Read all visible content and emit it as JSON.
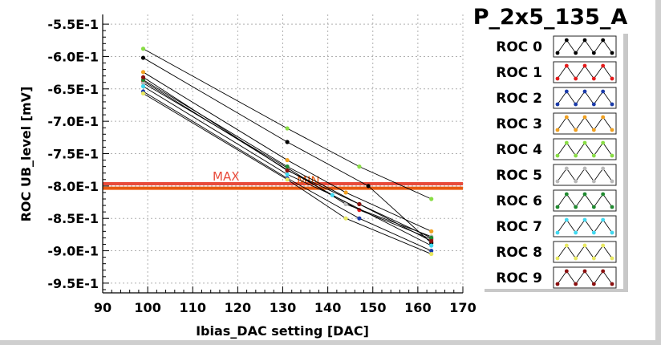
{
  "chart_data": {
    "type": "line",
    "title": "P_2x5_135_A",
    "xlabel": "Ibias_DAC setting [DAC]",
    "ylabel": "ROC UB_level [mV]",
    "xlim": [
      90,
      170
    ],
    "ylim": [
      -0.965,
      -0.535
    ],
    "xticks": [
      90,
      100,
      110,
      120,
      130,
      140,
      150,
      160,
      170
    ],
    "xtick_labels": [
      "90",
      "100",
      "110",
      "120",
      "130",
      "140",
      "150",
      "160",
      "170"
    ],
    "yticks": [
      -0.55,
      -0.6,
      -0.65,
      -0.7,
      -0.75,
      -0.8,
      -0.85,
      -0.9,
      -0.95
    ],
    "ytick_labels": [
      "-5.5E-1",
      "-6.0E-1",
      "-6.5E-1",
      "-7.0E-1",
      "-7.5E-1",
      "-8.0E-1",
      "-8.5E-1",
      "-9.0E-1",
      "-9.5E-1"
    ],
    "grid": true,
    "legend_position": "right",
    "thresholds": [
      {
        "label": "MAX",
        "y": -0.7965,
        "color": "#e84a3a"
      },
      {
        "label": "MIN",
        "y": -0.8035,
        "color": "#e85a10"
      }
    ],
    "series": [
      {
        "name": "ROC 0",
        "color": "#000000",
        "x": [
          99,
          131,
          149,
          163
        ],
        "y": [
          -0.602,
          -0.732,
          -0.8,
          -0.888
        ]
      },
      {
        "name": "ROC 1",
        "color": "#e41a1a",
        "x": [
          99,
          131,
          147,
          163
        ],
        "y": [
          -0.638,
          -0.775,
          -0.837,
          -0.882
        ]
      },
      {
        "name": "ROC 2",
        "color": "#1a3aa8",
        "x": [
          99,
          131,
          147,
          163
        ],
        "y": [
          -0.654,
          -0.788,
          -0.85,
          -0.9
        ]
      },
      {
        "name": "ROC 3",
        "color": "#f0a020",
        "x": [
          99,
          131,
          144,
          163
        ],
        "y": [
          -0.624,
          -0.76,
          -0.81,
          -0.87
        ]
      },
      {
        "name": "ROC 4",
        "color": "#88dd44",
        "x": [
          99,
          131,
          147,
          163
        ],
        "y": [
          -0.588,
          -0.711,
          -0.77,
          -0.82
        ]
      },
      {
        "name": "ROC 5",
        "color": "#b8b8b8",
        "x": [
          99,
          131,
          144,
          163
        ],
        "y": [
          -0.641,
          -0.772,
          -0.828,
          -0.878
        ]
      },
      {
        "name": "ROC 6",
        "color": "#208a30",
        "x": [
          99,
          131,
          147,
          163
        ],
        "y": [
          -0.636,
          -0.77,
          -0.828,
          -0.88
        ]
      },
      {
        "name": "ROC 7",
        "color": "#40d8f0",
        "x": [
          99,
          131,
          141,
          163
        ],
        "y": [
          -0.646,
          -0.782,
          -0.814,
          -0.892
        ]
      },
      {
        "name": "ROC 8",
        "color": "#e8e860",
        "x": [
          99,
          131,
          144,
          163
        ],
        "y": [
          -0.657,
          -0.79,
          -0.85,
          -0.905
        ]
      },
      {
        "name": "ROC 9",
        "color": "#8a0e0e",
        "x": [
          99,
          131,
          147,
          163
        ],
        "y": [
          -0.632,
          -0.776,
          -0.828,
          -0.885
        ]
      }
    ]
  }
}
